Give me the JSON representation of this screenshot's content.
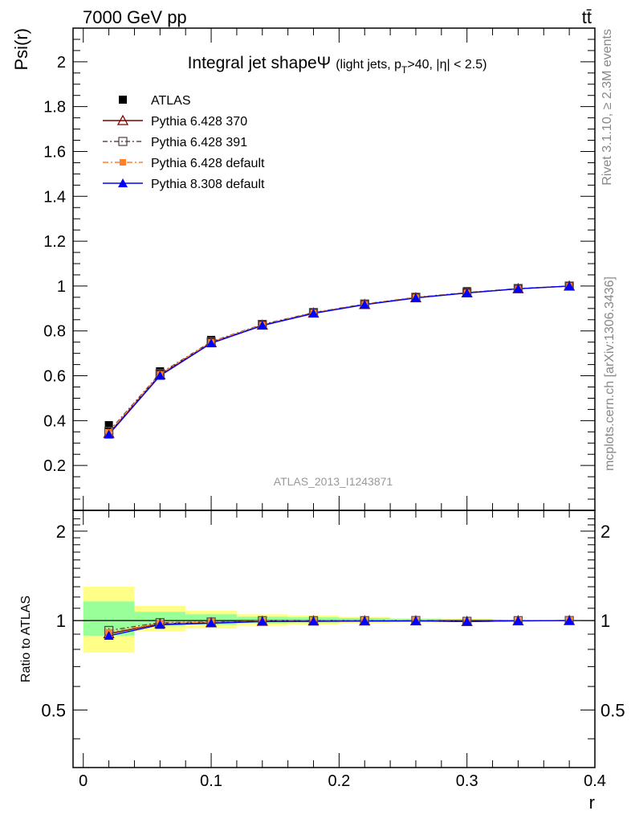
{
  "header": {
    "energy": "7000 GeV pp",
    "process": "tt̄",
    "rivet": "Rivet 3.1.10, ≥ 2.3M events",
    "mcplots": "mcplots.cern.ch [arXiv:1306.3436]",
    "analysis": "ATLAS_2013_I1243871"
  },
  "main_title": {
    "text": "Integral jet shapeΨ",
    "sub_a": "(light jets, p",
    "sub_b": "T",
    "sub_c": ">40, |η| < 2.5)"
  },
  "colors": {
    "atlas": "#000000",
    "py370": "#7f0000",
    "py391": "#5a4a4a",
    "py6def": "#ff7f2a",
    "py8def": "#0000ff",
    "band_inner": "#99ff99",
    "band_outer": "#ffff88"
  },
  "chart_data": [
    {
      "type": "line",
      "panel": "main",
      "ylabel": "Psi(r)",
      "xlim": [
        -0.008,
        0.4
      ],
      "ylim": [
        0,
        2.15
      ],
      "y_ticks": [
        "0.2",
        "0.4",
        "0.6",
        "0.8",
        "1",
        "1.2",
        "1.4",
        "1.6",
        "1.8",
        "2"
      ],
      "x": [
        0.02,
        0.06,
        0.1,
        0.14,
        0.18,
        0.22,
        0.26,
        0.3,
        0.34,
        0.38
      ],
      "legend": [
        "ATLAS",
        "Pythia 6.428 370",
        "Pythia 6.428 391",
        "Pythia 6.428 default",
        "Pythia 8.308 default"
      ],
      "series": [
        {
          "name": "ATLAS",
          "values": [
            0.38,
            0.62,
            0.76,
            0.83,
            0.883,
            0.921,
            0.95,
            0.977,
            0.99,
            1.0
          ]
        },
        {
          "name": "Pythia 6.428 370",
          "values": [
            0.343,
            0.605,
            0.748,
            0.826,
            0.88,
            0.918,
            0.948,
            0.97,
            0.988,
            1.0
          ]
        },
        {
          "name": "Pythia 6.428 391",
          "values": [
            0.352,
            0.61,
            0.752,
            0.829,
            0.882,
            0.92,
            0.95,
            0.971,
            0.989,
            1.0
          ]
        },
        {
          "name": "Pythia 6.428 default",
          "values": [
            0.347,
            0.607,
            0.75,
            0.827,
            0.881,
            0.919,
            0.949,
            0.97,
            0.988,
            1.0
          ]
        },
        {
          "name": "Pythia 8.308 default",
          "values": [
            0.338,
            0.6,
            0.745,
            0.824,
            0.878,
            0.917,
            0.947,
            0.969,
            0.988,
            1.0
          ]
        }
      ]
    },
    {
      "type": "line",
      "panel": "ratio",
      "xlabel": "r",
      "ylabel": "Ratio to ATLAS",
      "xlim": [
        -0.008,
        0.4
      ],
      "ylim": [
        0.32,
        2.35
      ],
      "y_ticks": [
        "0.5",
        "1",
        "2"
      ],
      "x_ticks": [
        "0",
        "0.1",
        "0.2",
        "0.3",
        "0.4"
      ],
      "x": [
        0.02,
        0.06,
        0.1,
        0.14,
        0.18,
        0.22,
        0.26,
        0.3,
        0.34,
        0.38
      ],
      "bands": {
        "bins": [
          [
            0,
            0.04
          ],
          [
            0.04,
            0.08
          ],
          [
            0.08,
            0.12
          ],
          [
            0.12,
            0.16
          ],
          [
            0.16,
            0.2
          ],
          [
            0.2,
            0.24
          ],
          [
            0.24,
            0.28
          ],
          [
            0.28,
            0.32
          ]
        ],
        "outer": [
          [
            0.78,
            1.3
          ],
          [
            0.92,
            1.12
          ],
          [
            0.94,
            1.08
          ],
          [
            0.96,
            1.05
          ],
          [
            0.97,
            1.04
          ],
          [
            0.98,
            1.03
          ],
          [
            0.985,
            1.02
          ],
          [
            0.99,
            1.015
          ]
        ],
        "inner": [
          [
            0.89,
            1.16
          ],
          [
            0.96,
            1.07
          ],
          [
            0.97,
            1.05
          ],
          [
            0.98,
            1.03
          ],
          [
            0.985,
            1.025
          ],
          [
            0.99,
            1.02
          ],
          [
            0.992,
            1.012
          ],
          [
            0.995,
            1.008
          ]
        ]
      },
      "series": [
        {
          "name": "Pythia 6.428 370",
          "values": [
            0.903,
            0.976,
            0.984,
            0.995,
            0.997,
            0.997,
            0.998,
            0.993,
            0.998,
            1.0
          ]
        },
        {
          "name": "Pythia 6.428 391",
          "values": [
            0.926,
            0.984,
            0.989,
            0.999,
            0.999,
            0.999,
            1.0,
            0.994,
            0.999,
            1.0
          ]
        },
        {
          "name": "Pythia 6.428 default",
          "values": [
            0.913,
            0.979,
            0.987,
            0.996,
            0.998,
            0.998,
            0.999,
            0.993,
            0.998,
            1.0
          ]
        },
        {
          "name": "Pythia 8.308 default",
          "values": [
            0.889,
            0.968,
            0.98,
            0.993,
            0.994,
            0.996,
            0.997,
            0.992,
            0.998,
            1.0
          ]
        }
      ]
    }
  ]
}
